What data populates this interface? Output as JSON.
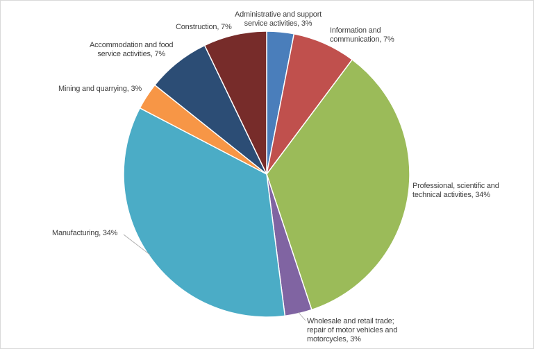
{
  "chart_data": {
    "type": "pie",
    "title": "",
    "start_angle_deg": 0,
    "direction": "clockwise",
    "slices": [
      {
        "name": "Administrative and support service activities",
        "value": 3,
        "label": "Administrative and support\nservice activities, 3%",
        "color": "#4a7ebb"
      },
      {
        "name": "Information and communication",
        "value": 7,
        "label": "Information and\ncommunication, 7%",
        "color": "#c0504d"
      },
      {
        "name": "Professional, scientific and technical activities",
        "value": 34,
        "label": "Professional, scientific and\ntechnical activities, 34%",
        "color": "#9bbb59"
      },
      {
        "name": "Wholesale and retail trade; repair of motor vehicles and motorcycles",
        "value": 3,
        "label": "Wholesale and retail trade;\nrepair of motor vehicles and\nmotorcycles, 3%",
        "color": "#8064a2"
      },
      {
        "name": "Manufacturing",
        "value": 34,
        "label": "Manufacturing, 34%",
        "color": "#4bacc6"
      },
      {
        "name": "Mining and quarrying",
        "value": 3,
        "label": "Mining and quarrying, 3%",
        "color": "#f79646"
      },
      {
        "name": "Accommodation and food service activities",
        "value": 7,
        "label": "Accommodation and food\nservice activities, 7%",
        "color": "#2c4d75"
      },
      {
        "name": "Construction",
        "value": 7,
        "label": "Construction, 7%",
        "color": "#772c2a"
      }
    ]
  }
}
